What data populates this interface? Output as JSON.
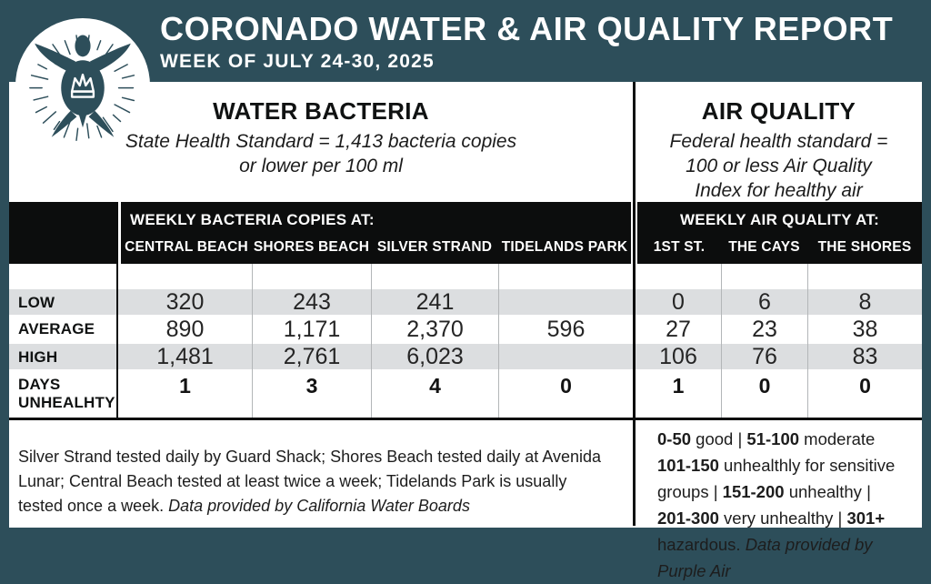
{
  "colors": {
    "teal": "#2d4e5a",
    "band_black": "#0c0d0d",
    "row_gray": "#dcdee0",
    "white": "#ffffff"
  },
  "header": {
    "title": "CORONADO WATER & AIR QUALITY REPORT",
    "subtitle": "WEEK OF JULY 24-30, 2025",
    "logo": "sea-turtle-with-crown-sunburst"
  },
  "sections": {
    "water": {
      "heading": "WATER BACTERIA",
      "standard_line1": "State Health Standard = 1,413 bacteria copies",
      "standard_line2": "or lower per 100 ml"
    },
    "air": {
      "heading": "AIR QUALITY",
      "standard_line1": "Federal health standard =",
      "standard_line2": "100 or less Air Quality",
      "standard_line3": "Index for healthy air"
    }
  },
  "table": {
    "water_group_label": "WEEKLY BACTERIA COPIES AT:",
    "air_group_label": "WEEKLY AIR QUALITY AT:",
    "water_columns": [
      "CENTRAL BEACH",
      "SHORES BEACH",
      "SILVER STRAND",
      "TIDELANDS PARK"
    ],
    "air_columns": [
      "1ST ST.",
      "THE CAYS",
      "THE SHORES"
    ],
    "rows": [
      {
        "label": "LOW",
        "water": [
          "320",
          "243",
          "241",
          ""
        ],
        "air": [
          "0",
          "6",
          "8"
        ]
      },
      {
        "label": "AVERAGE",
        "water": [
          "890",
          "1,171",
          "2,370",
          "596"
        ],
        "air": [
          "27",
          "23",
          "38"
        ]
      },
      {
        "label": "HIGH",
        "water": [
          "1,481",
          "2,761",
          "6,023",
          ""
        ],
        "air": [
          "106",
          "76",
          "83"
        ]
      },
      {
        "label": "DAYS UNHEALHTY",
        "water": [
          "1",
          "3",
          "4",
          "0"
        ],
        "air": [
          "1",
          "0",
          "0"
        ]
      }
    ]
  },
  "footnotes": {
    "water_note": "Silver Strand tested daily by Guard Shack; Shores Beach tested daily at Avenida Lunar; Central Beach tested at least twice a week; Tidelands Park is usually tested once a week. ",
    "water_source": "Data provided by California Water Boards",
    "air_legend": {
      "l1a": "0-50",
      "l1b": " good | ",
      "l1c": "51-100",
      "l1d": " moderate",
      "l2a": "101-150",
      "l2b": " unhealthly for sensitive",
      "l3a": "groups | ",
      "l3b": "151-200",
      "l3c": " unhealthy |",
      "l4a": "201-300",
      "l4b": " very unhealthy | ",
      "l4c": "301+",
      "l5a": "hazardous. ",
      "l5b": "Data provided by Purple Air"
    }
  }
}
